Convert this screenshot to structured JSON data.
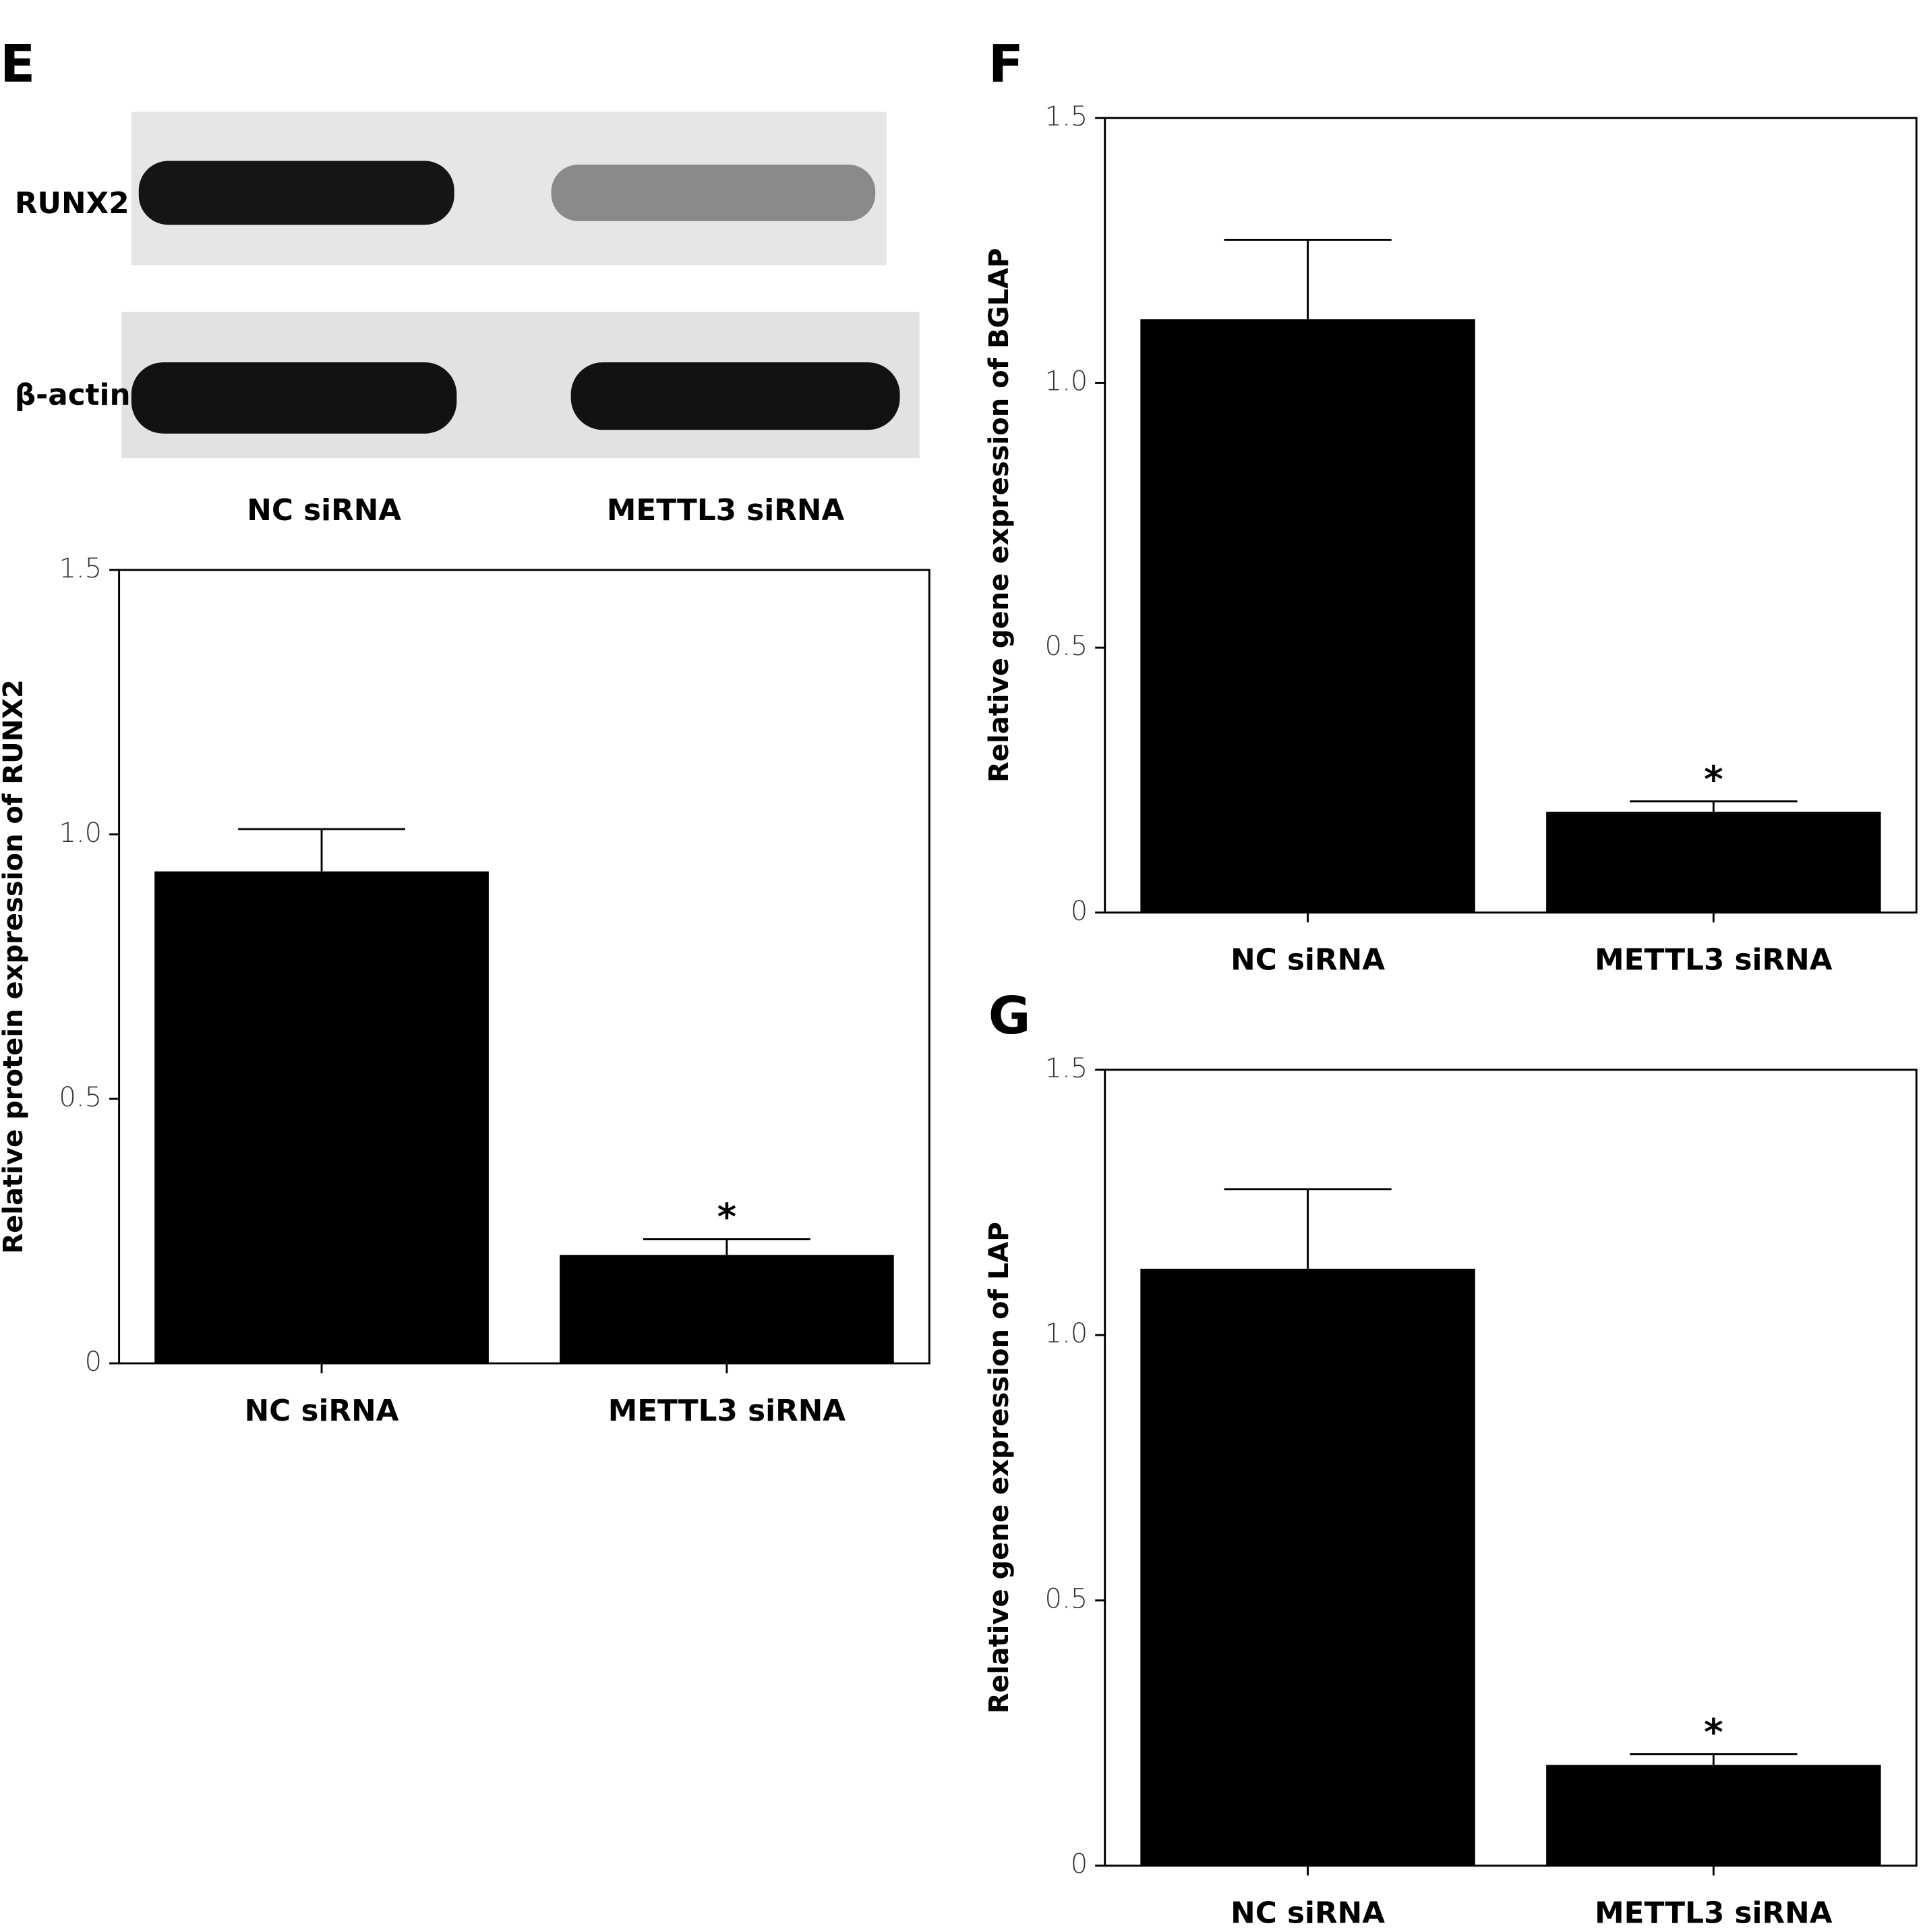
{
  "chart_data": [
    {
      "type": "bar",
      "panel": "E",
      "blot": {
        "bands": [
          "RUNX2",
          "β-actin"
        ],
        "lanes": [
          "NC siRNA",
          "METTL3 siRNA"
        ]
      },
      "categories": [
        "NC siRNA",
        "METTL3 siRNA"
      ],
      "values": [
        0.93,
        0.205
      ],
      "errors": [
        0.08,
        0.03
      ],
      "significance": [
        null,
        "*"
      ],
      "y_label": "Relative protein expression of RUNX2",
      "ylim": [
        0,
        1.5
      ],
      "yticks": [
        0,
        0.5,
        {
          "value": 1,
          "label": "1.0"
        },
        1.5
      ],
      "color": "#000000"
    },
    {
      "type": "bar",
      "panel": "F",
      "categories": [
        "NC siRNA",
        "METTL3 siRNA"
      ],
      "values": [
        1.12,
        0.19
      ],
      "errors": [
        0.15,
        0.02
      ],
      "significance": [
        null,
        "*"
      ],
      "y_label": "Relative gene expression of BGLAP",
      "ylim": [
        0,
        1.5
      ],
      "yticks": [
        0,
        0.5,
        {
          "value": 1,
          "label": "1.0"
        },
        1.5
      ],
      "color": "#000000"
    },
    {
      "type": "bar",
      "panel": "G",
      "categories": [
        "NC siRNA",
        "METTL3 siRNA"
      ],
      "values": [
        1.125,
        0.19
      ],
      "errors": [
        0.15,
        0.02
      ],
      "significance": [
        null,
        "*"
      ],
      "y_label": "Relative gene expression of LAP",
      "ylim": [
        0,
        1.5
      ],
      "yticks": [
        0,
        0.5,
        {
          "value": 1,
          "label": "1.0"
        },
        1.5
      ],
      "color": "#000000"
    }
  ]
}
